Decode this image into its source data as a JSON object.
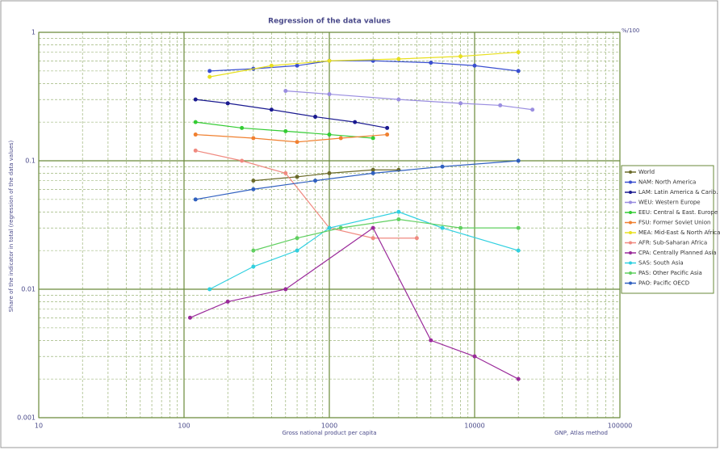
{
  "chart_data": {
    "type": "line",
    "title": "Regression of the data values",
    "x_label": "Gross national product per capita",
    "x_note": "GNP, Atlas method",
    "y_label": "Share of the indicator in total (regression of the data values)",
    "y_note": "%/100",
    "xscale": "log",
    "yscale": "log",
    "grid": true,
    "legend": "right",
    "xlim": [
      10,
      100000
    ],
    "ylim": [
      0.001,
      1
    ],
    "xticks": [
      10,
      100,
      1000,
      10000,
      100000
    ],
    "yticks": [
      0.001,
      0.01,
      0.1,
      1
    ],
    "xminor": [
      20,
      30,
      40,
      50,
      60,
      70,
      80,
      90,
      200,
      300,
      400,
      500,
      600,
      700,
      800,
      900,
      2000,
      3000,
      4000,
      5000,
      6000,
      7000,
      8000,
      9000,
      20000,
      30000,
      40000,
      50000,
      60000,
      70000,
      80000,
      90000
    ],
    "yminor": [
      0.002,
      0.003,
      0.004,
      0.005,
      0.006,
      0.007,
      0.008,
      0.009,
      0.02,
      0.03,
      0.04,
      0.05,
      0.06,
      0.07,
      0.08,
      0.09,
      0.2,
      0.3,
      0.4,
      0.5,
      0.6,
      0.7,
      0.8,
      0.9
    ],
    "series": [
      {
        "name": "World",
        "color": "#6b6b2a",
        "x": [
          300,
          600,
          1000,
          2000,
          3000
        ],
        "values": [
          0.07,
          0.075,
          0.08,
          0.085,
          0.085
        ]
      },
      {
        "name": "NAM: North America",
        "color": "#3a4fd0",
        "x": [
          150,
          300,
          600,
          1000,
          2000,
          5000,
          10000,
          20000
        ],
        "values": [
          0.5,
          0.52,
          0.55,
          0.6,
          0.6,
          0.58,
          0.55,
          0.5
        ]
      },
      {
        "name": "LAM: Latin America & Carib.",
        "color": "#1a1a90",
        "x": [
          120,
          200,
          400,
          800,
          1500,
          2500
        ],
        "values": [
          0.3,
          0.28,
          0.25,
          0.22,
          0.2,
          0.18
        ]
      },
      {
        "name": "WEU: Western Europe",
        "color": "#9a8ee0",
        "x": [
          500,
          1000,
          3000,
          8000,
          15000,
          25000
        ],
        "values": [
          0.35,
          0.33,
          0.3,
          0.28,
          0.27,
          0.25
        ]
      },
      {
        "name": "EEU: Central & East. Europe",
        "color": "#33cc33",
        "x": [
          120,
          250,
          500,
          1000,
          2000
        ],
        "values": [
          0.2,
          0.18,
          0.17,
          0.16,
          0.15
        ]
      },
      {
        "name": "FSU: Former Soviet Union",
        "color": "#f08030",
        "x": [
          120,
          300,
          600,
          1200,
          2500
        ],
        "values": [
          0.16,
          0.15,
          0.14,
          0.15,
          0.16
        ]
      },
      {
        "name": "MEA: Mid-East & North Africa",
        "color": "#e8e020",
        "x": [
          150,
          400,
          1000,
          3000,
          8000,
          20000
        ],
        "values": [
          0.45,
          0.55,
          0.6,
          0.62,
          0.65,
          0.7
        ]
      },
      {
        "name": "AFR: Sub-Saharan Africa",
        "color": "#f08a80",
        "x": [
          120,
          250,
          500,
          1000,
          2000,
          4000
        ],
        "values": [
          0.12,
          0.1,
          0.08,
          0.03,
          0.025,
          0.025
        ]
      },
      {
        "name": "CPA: Centrally Planned Asia",
        "color": "#9a2a9a",
        "x": [
          110,
          200,
          500,
          2000,
          5000,
          10000,
          20000
        ],
        "values": [
          0.006,
          0.008,
          0.01,
          0.03,
          0.004,
          0.003,
          0.002
        ]
      },
      {
        "name": "SAS: South Asia",
        "color": "#30d0e0",
        "x": [
          150,
          300,
          600,
          1000,
          3000,
          6000,
          20000
        ],
        "values": [
          0.01,
          0.015,
          0.02,
          0.03,
          0.04,
          0.03,
          0.02
        ]
      },
      {
        "name": "PAS: Other Pacific Asia",
        "color": "#60d060",
        "x": [
          300,
          600,
          1200,
          3000,
          8000,
          20000
        ],
        "values": [
          0.02,
          0.025,
          0.03,
          0.035,
          0.03,
          0.03
        ]
      },
      {
        "name": "PAO: Pacific OECD",
        "color": "#3060c0",
        "x": [
          120,
          300,
          800,
          2000,
          6000,
          20000
        ],
        "values": [
          0.05,
          0.06,
          0.07,
          0.08,
          0.09,
          0.1
        ]
      }
    ]
  }
}
